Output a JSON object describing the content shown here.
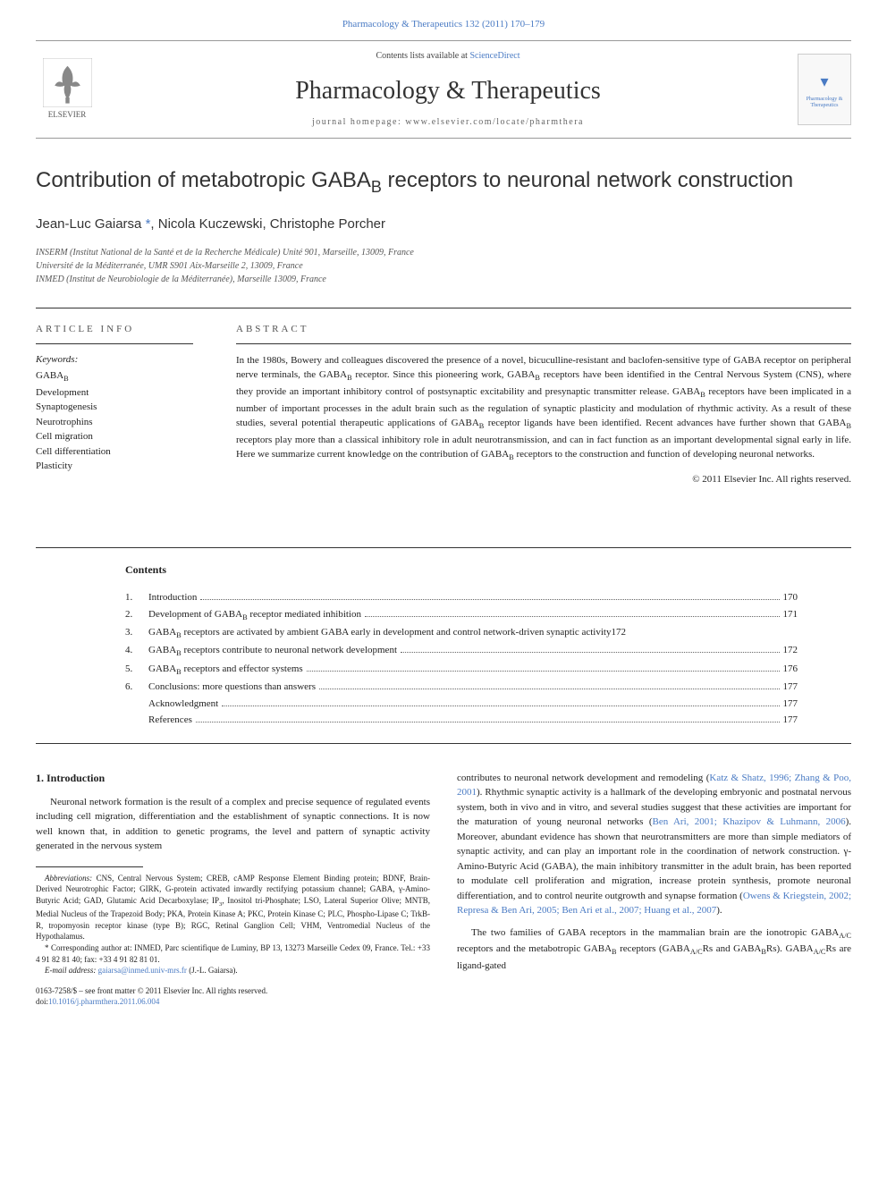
{
  "top_link": {
    "prefix": "Pharmacology & Therapeutics 132 (2011) 170–179"
  },
  "header": {
    "contents_text": "Contents lists available at ",
    "contents_link": "ScienceDirect",
    "journal_name": "Pharmacology & Therapeutics",
    "homepage": "journal homepage: www.elsevier.com/locate/pharmthera",
    "elsevier_text": "ELSEVIER",
    "thumb_title": "Pharmacology & Therapeutics"
  },
  "article": {
    "title_plain": "Contribution of metabotropic GABA",
    "title_sub": "B",
    "title_rest": " receptors to neuronal network construction",
    "authors": "Jean-Luc Gaiarsa ",
    "author_mark": "*",
    "authors_rest": ", Nicola Kuczewski, Christophe Porcher",
    "affiliations": [
      "INSERM (Institut National de la Santé et de la Recherche Médicale) Unité 901, Marseille, 13009, France",
      "Université de la Méditerranée, UMR S901 Aix-Marseille 2, 13009, France",
      "INMED (Institut de Neurobiologie de la Méditerranée), Marseille 13009, France"
    ]
  },
  "info": {
    "label": "ARTICLE INFO",
    "keywords_label": "Keywords:",
    "keywords": [
      "GABA_B",
      "Development",
      "Synaptogenesis",
      "Neurotrophins",
      "Cell migration",
      "Cell differentiation",
      "Plasticity"
    ]
  },
  "abstract": {
    "label": "ABSTRACT",
    "text": "In the 1980s, Bowery and colleagues discovered the presence of a novel, bicuculline-resistant and baclofen-sensitive type of GABA receptor on peripheral nerve terminals, the GABA_B receptor. Since this pioneering work, GABA_B receptors have been identified in the Central Nervous System (CNS), where they provide an important inhibitory control of postsynaptic excitability and presynaptic transmitter release. GABA_B receptors have been implicated in a number of important processes in the adult brain such as the regulation of synaptic plasticity and modulation of rhythmic activity. As a result of these studies, several potential therapeutic applications of GABA_B receptor ligands have been identified. Recent advances have further shown that GABA_B receptors play more than a classical inhibitory role in adult neurotransmission, and can in fact function as an important developmental signal early in life. Here we summarize current knowledge on the contribution of GABA_B receptors to the construction and function of developing neuronal networks.",
    "copyright": "© 2011 Elsevier Inc. All rights reserved."
  },
  "contents": {
    "heading": "Contents",
    "items": [
      {
        "num": "1.",
        "text": "Introduction",
        "page": "170"
      },
      {
        "num": "2.",
        "text": "Development of GABA_B receptor mediated inhibition",
        "page": "171"
      },
      {
        "num": "3.",
        "text": "GABA_B receptors are activated by ambient GABA early in development and control network-driven synaptic activity",
        "page": "172"
      },
      {
        "num": "4.",
        "text": "GABA_B receptors contribute to neuronal network development",
        "page": "172"
      },
      {
        "num": "5.",
        "text": "GABA_B receptors and effector systems",
        "page": "176"
      },
      {
        "num": "6.",
        "text": "Conclusions: more questions than answers",
        "page": "177"
      },
      {
        "num": "",
        "text": "Acknowledgment",
        "page": "177"
      },
      {
        "num": "",
        "text": "References",
        "page": "177"
      }
    ]
  },
  "body": {
    "section1_heading": "1. Introduction",
    "left_para1": "Neuronal network formation is the result of a complex and precise sequence of regulated events including cell migration, differentiation and the establishment of synaptic connections. It is now well known that, in addition to genetic programs, the level and pattern of synaptic activity generated in the nervous system",
    "right_para1_a": "contributes to neuronal network development and remodeling (",
    "right_ref1": "Katz & Shatz, 1996; Zhang & Poo, 2001",
    "right_para1_b": "). Rhythmic synaptic activity is a hallmark of the developing embryonic and postnatal nervous system, both in vivo and in vitro, and several studies suggest that these activities are important for the maturation of young neuronal networks (",
    "right_ref2": "Ben Ari, 2001; Khazipov & Luhmann, 2006",
    "right_para1_c": "). Moreover, abundant evidence has shown that neurotransmitters are more than simple mediators of synaptic activity, and can play an important role in the coordination of network construction. γ-Amino-Butyric Acid (GABA), the main inhibitory transmitter in the adult brain, has been reported to modulate cell proliferation and migration, increase protein synthesis, promote neuronal differentiation, and to control neurite outgrowth and synapse formation (",
    "right_ref3": "Owens & Kriegstein, 2002; Represa & Ben Ari, 2005; Ben Ari et al., 2007; Huang et al., 2007",
    "right_para1_d": ").",
    "right_para2": "The two families of GABA receptors in the mammalian brain are the ionotropic GABA_A/C receptors and the metabotropic GABA_B receptors (GABA_A/CRs and GABA_BRs). GABA_A/CRs are ligand-gated"
  },
  "footnotes": {
    "abbrev_label": "Abbreviations:",
    "abbrev_text": " CNS, Central Nervous System; CREB, cAMP Response Element Binding protein; BDNF, Brain-Derived Neurotrophic Factor; GIRK, G-protein activated inwardly rectifying potassium channel; GABA, γ-Amino-Butyric Acid; GAD, Glutamic Acid Decarboxylase; IP_3, Inositol tri-Phosphate; LSO, Lateral Superior Olive; MNTB, Medial Nucleus of the Trapezoid Body; PKA, Protein Kinase A; PKC, Protein Kinase C; PLC, Phospho-Lipase C; TrkB-R, tropomyosin receptor kinase (type B); RGC, Retinal Ganglion Cell; VHM, Ventromedial Nucleus of the Hypothalamus.",
    "corr_label": "* Corresponding author at:",
    "corr_text": " INMED, Parc scientifique de Luminy, BP 13, 13273 Marseille Cedex 09, France. Tel.: +33 4 91 82 81 40; fax: +33 4 91 82 81 01.",
    "email_label": "E-mail address:",
    "email": " gaiarsa@inmed.univ-mrs.fr",
    "email_name": " (J.-L. Gaiarsa).",
    "front_matter": "0163-7258/$ – see front matter © 2011 Elsevier Inc. All rights reserved.",
    "doi": "doi:10.1016/j.pharmthera.2011.06.004"
  },
  "colors": {
    "link": "#4a7bc4",
    "text": "#222",
    "border": "#333",
    "elsevier_orange": "#ff6a00"
  }
}
